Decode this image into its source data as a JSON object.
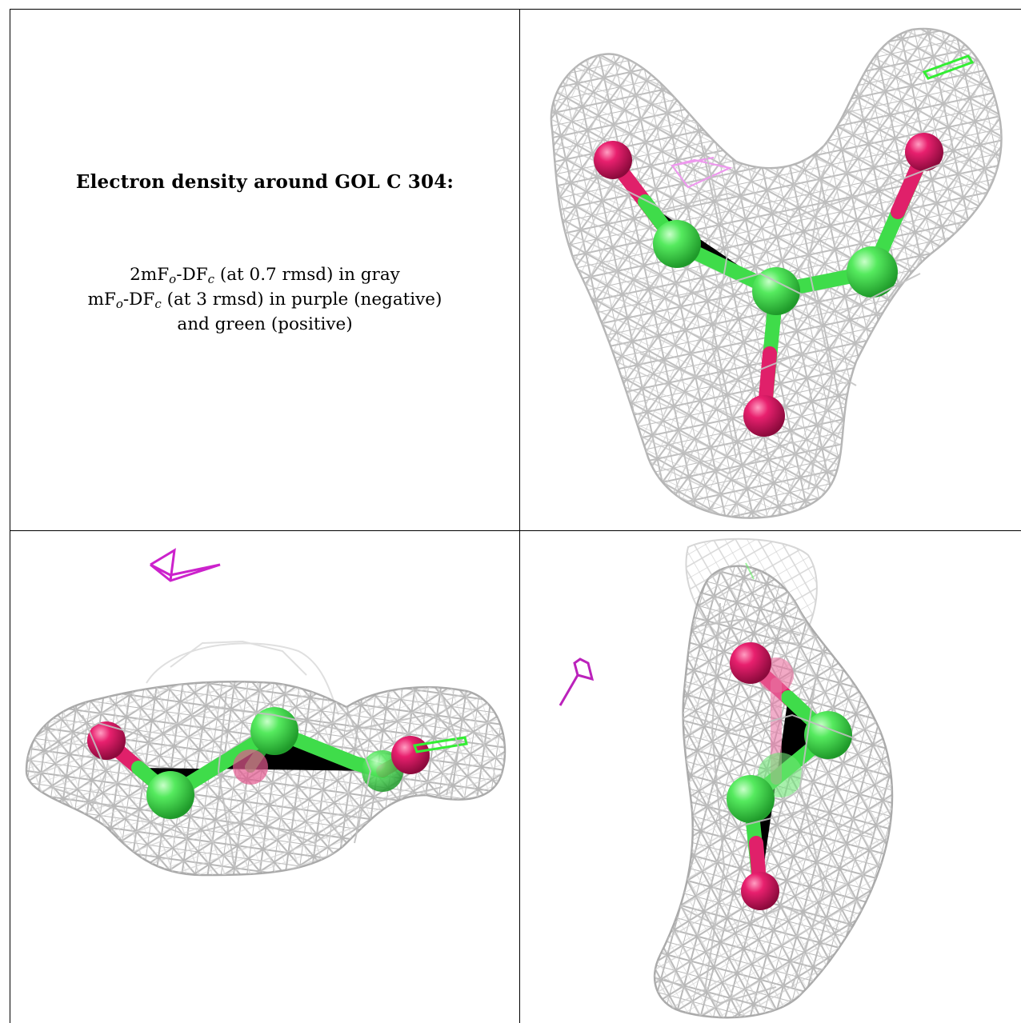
{
  "caption": {
    "title": "Electron density around GOL C 304:",
    "line1": {
      "a": "2mF",
      "a_sub": "o",
      "b": "-DF",
      "b_sub": "c",
      "c": " (at 0.7 rmsd) in gray"
    },
    "line2": {
      "a": "mF",
      "a_sub": "o",
      "b": "-DF",
      "b_sub": "c",
      "c": " (at 3 rmsd) in purple (negative)"
    },
    "line3": "and green (positive)"
  },
  "colors": {
    "mesh_2fofc": "#b9b9b9",
    "mesh_neg": "#cc33cc",
    "mesh_pos": "#33ee33",
    "carbon": "#44e050",
    "oxygen": "#e0206a",
    "grid_lines": "#000000"
  },
  "panels": [
    {
      "name": "caption"
    },
    {
      "name": "view-top-right"
    },
    {
      "name": "view-bottom-left"
    },
    {
      "name": "view-bottom-right"
    }
  ]
}
